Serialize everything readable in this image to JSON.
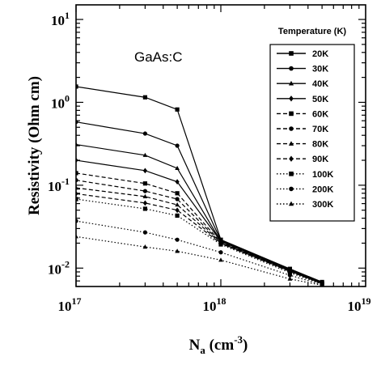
{
  "chart_data": {
    "type": "line",
    "x_scale": "log",
    "y_scale": "log",
    "xlim": [
      1e+17,
      1e+19
    ],
    "ylim": [
      0.006,
      15
    ],
    "xlabel": {
      "base": "N",
      "sub": "a",
      "unit_open": " (cm",
      "unit_sup": "-3",
      "unit_close": ")"
    },
    "ylabel": "Resistivity (Ohm cm)",
    "x_ticks": [
      {
        "value": 1e+17,
        "base": "10",
        "exp": "17"
      },
      {
        "value": 1e+18,
        "base": "10",
        "exp": "18"
      },
      {
        "value": 1e+19,
        "base": "10",
        "exp": "19"
      }
    ],
    "y_ticks": [
      {
        "value": 0.01,
        "base": "10",
        "exp": "-2"
      },
      {
        "value": 0.1,
        "base": "10",
        "exp": "-1"
      },
      {
        "value": 1,
        "base": "10",
        "exp": "0"
      },
      {
        "value": 10,
        "base": "10",
        "exp": "1"
      }
    ],
    "annotation": "GaAs:C",
    "legend": {
      "title": "Temperature (K)",
      "placement": "top-right"
    },
    "x": [
      1e+17,
      3e+17,
      5e+17,
      1e+18,
      3e+18,
      5e+18
    ],
    "series": [
      {
        "name": "20K",
        "marker": "square",
        "dash": "solid",
        "values": [
          1.55,
          1.15,
          0.82,
          0.022,
          0.0098,
          0.0068
        ]
      },
      {
        "name": "30K",
        "marker": "circle",
        "dash": "solid",
        "values": [
          0.58,
          0.42,
          0.3,
          0.0215,
          0.0097,
          0.0067
        ]
      },
      {
        "name": "40K",
        "marker": "triangle",
        "dash": "solid",
        "values": [
          0.31,
          0.23,
          0.16,
          0.021,
          0.0096,
          0.0067
        ]
      },
      {
        "name": "50K",
        "marker": "diamond",
        "dash": "solid",
        "values": [
          0.2,
          0.15,
          0.11,
          0.021,
          0.0095,
          0.0066
        ]
      },
      {
        "name": "60K",
        "marker": "square",
        "dash": "dashed",
        "values": [
          0.14,
          0.105,
          0.08,
          0.0205,
          0.0094,
          0.0066
        ]
      },
      {
        "name": "70K",
        "marker": "circle",
        "dash": "dashed",
        "values": [
          0.115,
          0.085,
          0.068,
          0.0202,
          0.0093,
          0.0066
        ]
      },
      {
        "name": "80K",
        "marker": "triangle",
        "dash": "dashed",
        "values": [
          0.093,
          0.073,
          0.058,
          0.02,
          0.0092,
          0.0065
        ]
      },
      {
        "name": "90K",
        "marker": "diamond",
        "dash": "dashed",
        "values": [
          0.079,
          0.061,
          0.05,
          0.0198,
          0.0091,
          0.0065
        ]
      },
      {
        "name": "100K",
        "marker": "square",
        "dash": "dotted",
        "values": [
          0.068,
          0.052,
          0.043,
          0.0193,
          0.0088,
          0.0064
        ]
      },
      {
        "name": "200K",
        "marker": "circle",
        "dash": "dotted",
        "values": [
          0.037,
          0.027,
          0.022,
          0.0155,
          0.0082,
          0.0063
        ]
      },
      {
        "name": "300K",
        "marker": "triangle",
        "dash": "dotted",
        "values": [
          0.024,
          0.018,
          0.016,
          0.0125,
          0.0074,
          0.0062
        ]
      }
    ]
  }
}
